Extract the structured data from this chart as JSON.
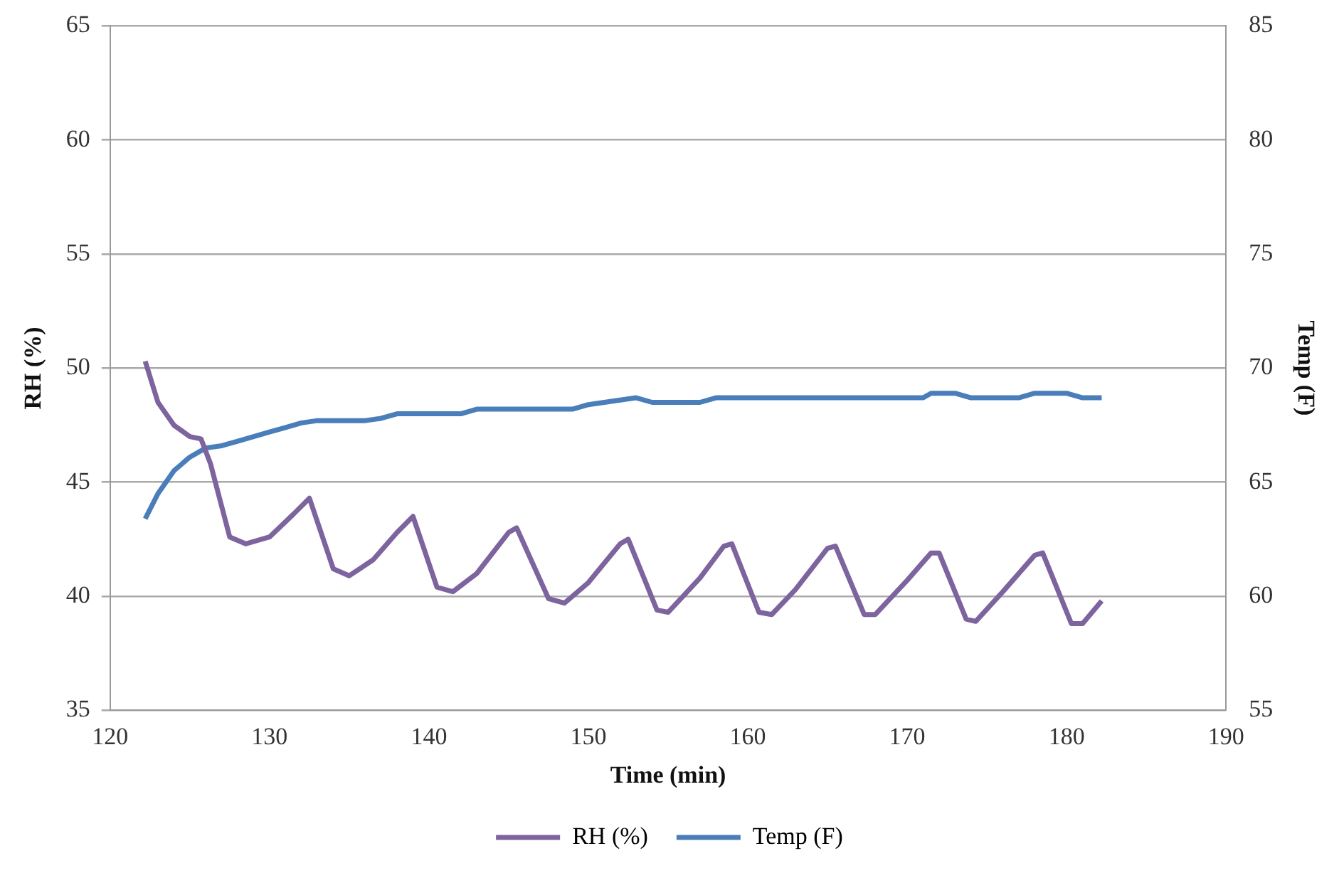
{
  "chart_data": {
    "type": "line",
    "xlabel": "Time (min)",
    "ylabel": "RH (%)",
    "y2label": "Temp (F)",
    "xlim": [
      120,
      190
    ],
    "xticks": [
      120,
      130,
      140,
      150,
      160,
      170,
      180,
      190
    ],
    "ylim": [
      35,
      65
    ],
    "yticks": [
      35,
      40,
      45,
      50,
      55,
      60,
      65
    ],
    "y2lim": [
      55,
      85
    ],
    "y2ticks": [
      55,
      60,
      65,
      70,
      75,
      80,
      85
    ],
    "grid": "y",
    "legend": "bottom",
    "marker": "none",
    "line_style": "solid",
    "series": [
      {
        "name": "RH (%)",
        "color": "#7e649e",
        "x": [
          122.2,
          123,
          124,
          125,
          125.7,
          126.3,
          127.5,
          128.5,
          130,
          131.5,
          132.5,
          134,
          135,
          136.5,
          138,
          139,
          140.5,
          141.5,
          143,
          145,
          145.5,
          147.5,
          148.5,
          150,
          152,
          152.5,
          154.3,
          155,
          157,
          158.5,
          159,
          160.7,
          161.5,
          163,
          165,
          165.5,
          167.3,
          168,
          170,
          171.5,
          172,
          173.7,
          174.3,
          176,
          178,
          178.5,
          180.3,
          181,
          182.2
        ],
        "values": [
          50.3,
          48.5,
          47.5,
          47.0,
          46.9,
          45.8,
          42.6,
          42.3,
          42.6,
          43.6,
          44.3,
          41.2,
          40.9,
          41.6,
          42.8,
          43.5,
          40.4,
          40.2,
          41.0,
          42.8,
          43.0,
          39.9,
          39.7,
          40.6,
          42.3,
          42.5,
          39.4,
          39.3,
          40.8,
          42.2,
          42.3,
          39.3,
          39.2,
          40.3,
          42.1,
          42.2,
          39.2,
          39.2,
          40.7,
          41.9,
          41.9,
          39.0,
          38.9,
          40.2,
          41.8,
          41.9,
          38.8,
          38.8,
          39.8
        ]
      },
      {
        "name": "Temp (F)",
        "color": "#4a7ebb",
        "axis": "y2",
        "x": [
          122.2,
          123,
          124,
          125,
          126,
          127,
          128,
          129,
          130,
          131,
          132,
          133,
          136,
          137,
          138,
          142,
          143,
          149,
          150,
          152,
          153,
          154,
          157,
          158,
          171,
          171.5,
          173,
          174,
          177,
          178,
          180,
          181,
          182.2
        ],
        "values": [
          63.4,
          64.5,
          65.5,
          66.1,
          66.5,
          66.6,
          66.8,
          67.0,
          67.2,
          67.4,
          67.6,
          67.7,
          67.7,
          67.8,
          68.0,
          68.0,
          68.2,
          68.2,
          68.4,
          68.6,
          68.7,
          68.5,
          68.5,
          68.7,
          68.7,
          68.9,
          68.9,
          68.7,
          68.7,
          68.9,
          68.9,
          68.7,
          68.7
        ]
      }
    ]
  }
}
